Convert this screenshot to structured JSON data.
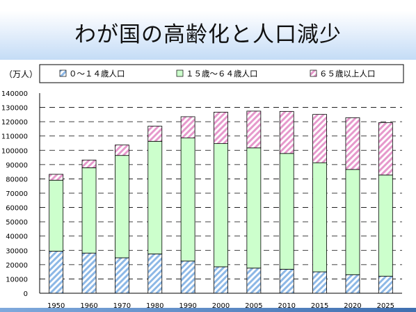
{
  "title": "わが国の高齢化と人口減少",
  "chart_data": {
    "type": "bar",
    "stacked": true,
    "ylabel": "（万人）",
    "ylim": [
      0,
      140000
    ],
    "yticks": [
      0,
      10000,
      20000,
      30000,
      40000,
      50000,
      60000,
      70000,
      80000,
      90000,
      100000,
      110000,
      120000,
      130000,
      140000
    ],
    "grid": "horizontal dashed",
    "legend_position": "top",
    "categories": [
      "1950",
      "1960",
      "1970",
      "1980",
      "1990",
      "2000",
      "2005",
      "2010",
      "2015",
      "2020",
      "2025"
    ],
    "series": [
      {
        "name": "０～１４歳人口",
        "color": "#8db8e6",
        "pattern": "hatch",
        "values": [
          29400,
          28100,
          24800,
          27500,
          22500,
          18500,
          17600,
          16800,
          15000,
          13000,
          11900
        ]
      },
      {
        "name": "１５歳～６４歳人口",
        "color": "#ccffcc",
        "pattern": "solid",
        "values": [
          49700,
          59700,
          71600,
          78800,
          86100,
          86200,
          84100,
          81000,
          76300,
          73600,
          70800
        ]
      },
      {
        "name": "６５歳以上人口",
        "color": "#e699cc",
        "pattern": "hatch",
        "values": [
          4100,
          5400,
          7300,
          10600,
          14900,
          22000,
          25700,
          29400,
          33800,
          36200,
          36600
        ]
      }
    ]
  }
}
